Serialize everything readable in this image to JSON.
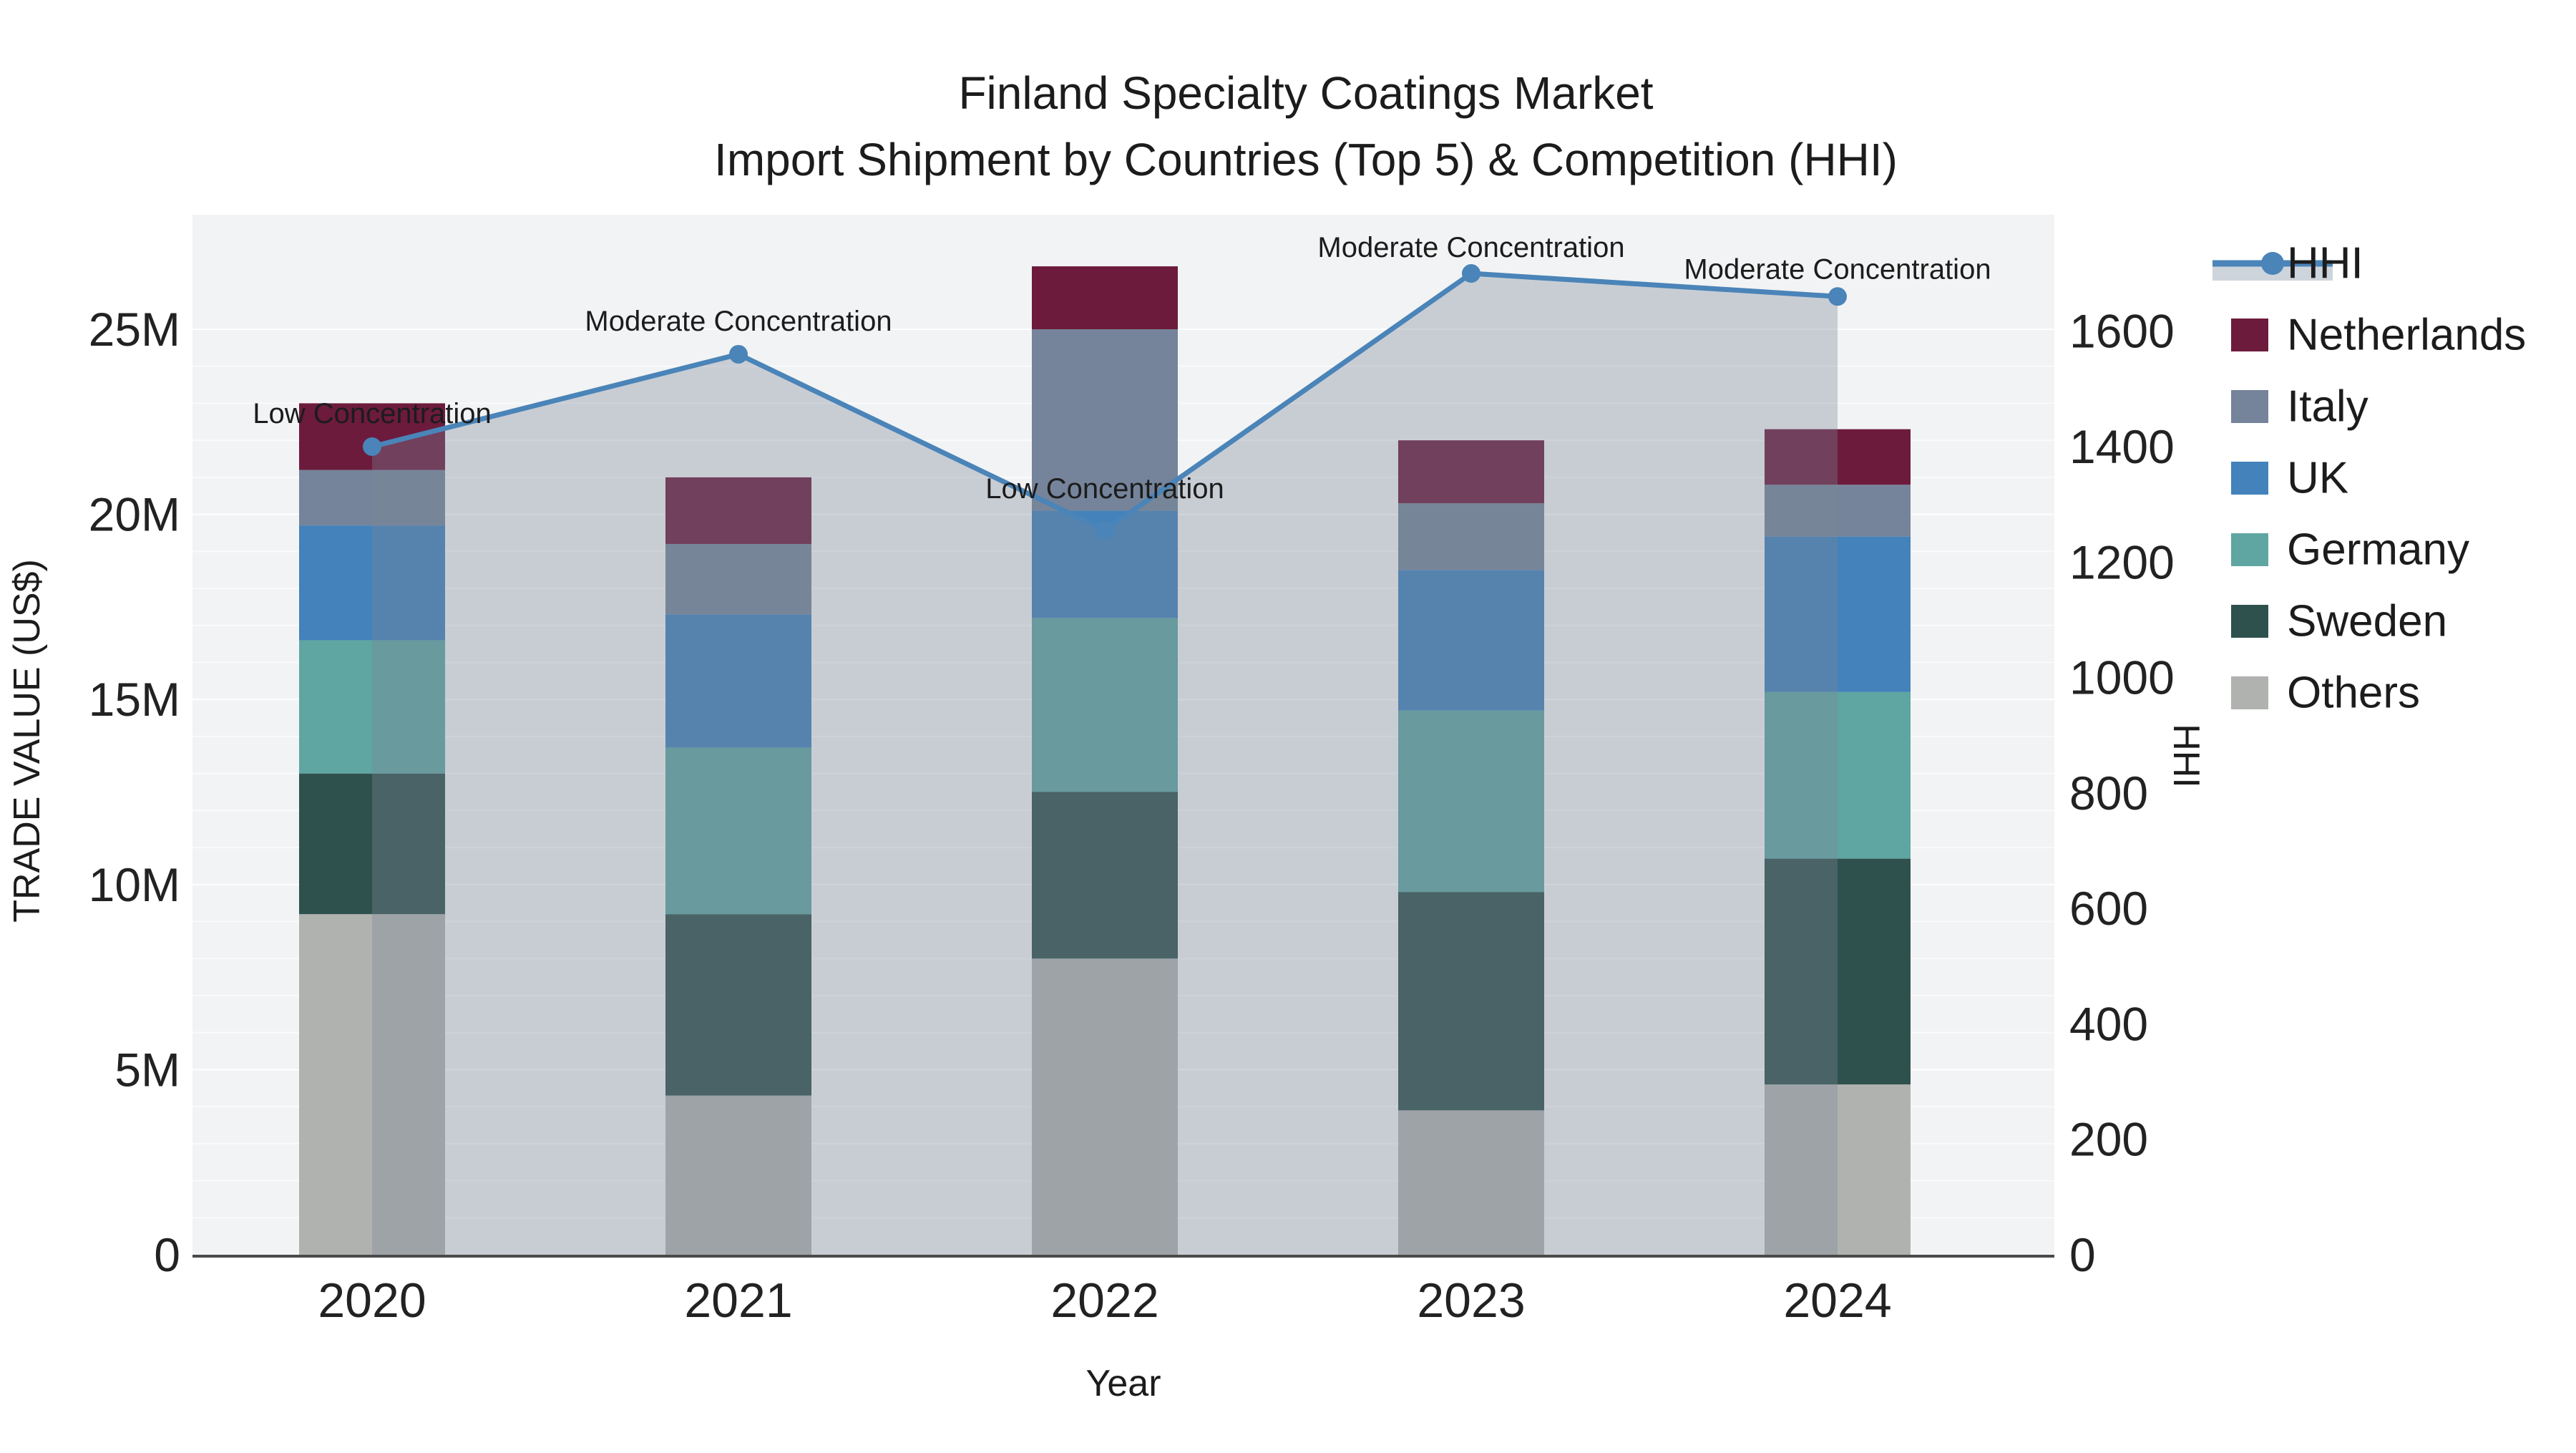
{
  "chart_data": {
    "type": "bar+line",
    "title": "Finland Specialty Coatings Market",
    "subtitle": "Import Shipment by Countries (Top 5) & Competition (HHI)",
    "xlabel": "Year",
    "ylabel": "TRADE VALUE (US$)",
    "y2label": "HHI",
    "categories": [
      "2020",
      "2021",
      "2022",
      "2023",
      "2024"
    ],
    "value_unit": "millions US$",
    "stack_order_bottom_to_top": [
      "Others",
      "Sweden",
      "Germany",
      "UK",
      "Italy",
      "Netherlands"
    ],
    "series": [
      {
        "name": "Others",
        "color": "#B0B2AF",
        "values": [
          9.2,
          4.3,
          8.0,
          3.9,
          4.6
        ]
      },
      {
        "name": "Sweden",
        "color": "#2F514E",
        "values": [
          3.8,
          4.9,
          4.5,
          5.9,
          6.1
        ]
      },
      {
        "name": "Germany",
        "color": "#5FA5A1",
        "values": [
          3.6,
          4.5,
          4.7,
          4.9,
          4.5
        ]
      },
      {
        "name": "UK",
        "color": "#4382BA",
        "values": [
          3.1,
          3.6,
          2.9,
          3.8,
          4.2
        ]
      },
      {
        "name": "Italy",
        "color": "#75849A",
        "values": [
          1.5,
          1.9,
          4.9,
          1.8,
          1.4
        ]
      },
      {
        "name": "Netherlands",
        "color": "#6C1B3C",
        "values": [
          1.8,
          1.8,
          1.7,
          1.7,
          1.5
        ]
      }
    ],
    "hhi": {
      "name": "HHI",
      "color": "#4A84B8",
      "fill_color": "rgba(122,134,152,0.35)",
      "legend_band_color": "#CDD4DC",
      "values": [
        1400,
        1560,
        1255,
        1700,
        1660
      ]
    },
    "annotations": [
      {
        "text": "Low Concentration",
        "dy": -46
      },
      {
        "text": "Moderate Concentration",
        "dy": -46
      },
      {
        "text": "Low Concentration",
        "dy": -58
      },
      {
        "text": "Moderate Concentration",
        "dy": -36
      },
      {
        "text": "Moderate Concentration",
        "dy": -38
      }
    ],
    "y_axis": {
      "ticks": [
        {
          "v": 0,
          "label": "0"
        },
        {
          "v": 5,
          "label": "5M"
        },
        {
          "v": 10,
          "label": "10M"
        },
        {
          "v": 15,
          "label": "15M"
        },
        {
          "v": 20,
          "label": "20M"
        },
        {
          "v": 25,
          "label": "25M"
        }
      ],
      "max": 25
    },
    "y2_axis": {
      "ticks": [
        {
          "v": 0,
          "label": "0"
        },
        {
          "v": 200,
          "label": "200"
        },
        {
          "v": 400,
          "label": "400"
        },
        {
          "v": 600,
          "label": "600"
        },
        {
          "v": 800,
          "label": "800"
        },
        {
          "v": 1000,
          "label": "1000"
        },
        {
          "v": 1200,
          "label": "1200"
        },
        {
          "v": 1400,
          "label": "1400"
        },
        {
          "v": 1600,
          "label": "1600"
        }
      ],
      "max": 1600
    },
    "legend": [
      "HHI",
      "Netherlands",
      "Italy",
      "UK",
      "Germany",
      "Sweden",
      "Others"
    ],
    "colors": {
      "plot_bg": "#F2F3F4",
      "grid": "#FFFFFF",
      "axis_line": "#4A4A4A",
      "text": "#1C1C1C"
    }
  }
}
